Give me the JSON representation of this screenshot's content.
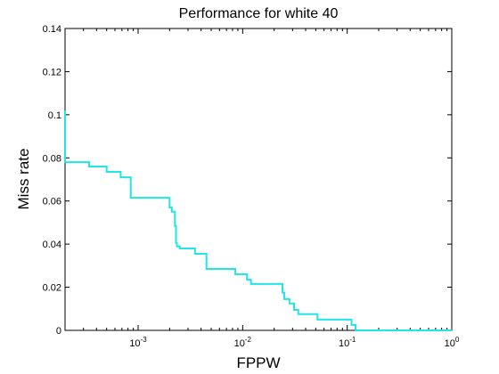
{
  "chart_data": {
    "type": "line",
    "title": "Performance for white 40",
    "xlabel": "FPPW",
    "ylabel": "Miss rate",
    "xscale": "log",
    "xlim": [
      0.0002,
      1
    ],
    "ylim": [
      0,
      0.14
    ],
    "grid": false,
    "legend": "none",
    "colors": {
      "line": "#22e5e5",
      "axes": "#000000",
      "background": "#ffffff"
    },
    "xticks": [
      {
        "value": 0.001,
        "base": "10",
        "exp": "-3"
      },
      {
        "value": 0.01,
        "base": "10",
        "exp": "-2"
      },
      {
        "value": 0.1,
        "base": "10",
        "exp": "-1"
      },
      {
        "value": 1,
        "base": "10",
        "exp": "0"
      }
    ],
    "yticks": [
      {
        "value": 0,
        "label": "0"
      },
      {
        "value": 0.02,
        "label": "0.02"
      },
      {
        "value": 0.04,
        "label": "0.04"
      },
      {
        "value": 0.06,
        "label": "0.06"
      },
      {
        "value": 0.08,
        "label": "0.08"
      },
      {
        "value": 0.1,
        "label": "0.1"
      },
      {
        "value": 0.12,
        "label": "0.12"
      },
      {
        "value": 0.14,
        "label": "0.14"
      }
    ],
    "series": [
      {
        "step": true,
        "x": [
          0.0002,
          0.0002,
          0.0002,
          0.00034,
          0.0005,
          0.00068,
          0.00085,
          0.002,
          0.0021,
          0.00225,
          0.0023,
          0.00235,
          0.0025,
          0.0035,
          0.0045,
          0.0085,
          0.011,
          0.012,
          0.024,
          0.025,
          0.028,
          0.031,
          0.034,
          0.052,
          0.11,
          0.12,
          1
        ],
        "y": [
          0.102,
          0.1,
          0.078,
          0.076,
          0.0735,
          0.071,
          0.0615,
          0.057,
          0.055,
          0.0485,
          0.0405,
          0.039,
          0.038,
          0.0355,
          0.0285,
          0.026,
          0.0235,
          0.0215,
          0.0175,
          0.0145,
          0.0125,
          0.0095,
          0.0075,
          0.005,
          0.0025,
          0,
          0
        ]
      }
    ]
  }
}
